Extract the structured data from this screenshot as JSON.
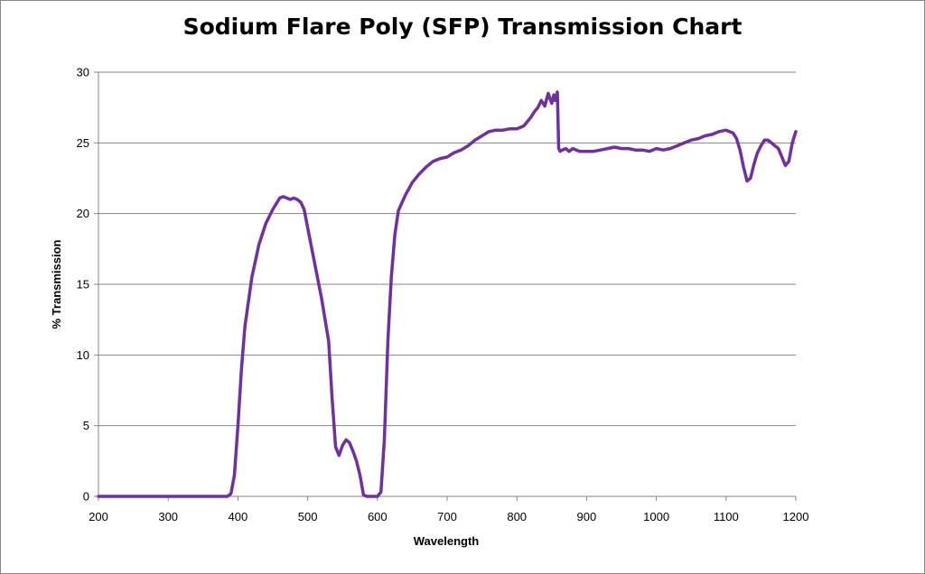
{
  "chart_data": {
    "type": "line",
    "title": "Sodium Flare Poly (SFP) Transmission Chart",
    "xlabel": "Wavelength",
    "ylabel": "% Transmission",
    "xlim": [
      200,
      1200
    ],
    "ylim": [
      0,
      30
    ],
    "x_ticks": [
      200,
      300,
      400,
      500,
      600,
      700,
      800,
      900,
      1000,
      1100,
      1200
    ],
    "y_ticks": [
      0,
      5,
      10,
      15,
      20,
      25,
      30
    ],
    "grid": "horizontal",
    "legend": "none",
    "series": [
      {
        "color": "#7030A0",
        "x": [
          200,
          300,
          385,
          390,
          395,
          400,
          405,
          410,
          420,
          430,
          440,
          450,
          460,
          465,
          470,
          475,
          480,
          485,
          490,
          495,
          500,
          510,
          520,
          530,
          535,
          540,
          545,
          550,
          555,
          560,
          565,
          570,
          575,
          580,
          585,
          590,
          595,
          600,
          605,
          610,
          615,
          620,
          625,
          630,
          640,
          650,
          660,
          670,
          680,
          690,
          700,
          710,
          720,
          730,
          740,
          750,
          760,
          770,
          780,
          790,
          800,
          810,
          815,
          820,
          825,
          830,
          835,
          840,
          845,
          850,
          853,
          855,
          858,
          860,
          862,
          865,
          870,
          875,
          880,
          890,
          900,
          910,
          920,
          930,
          940,
          950,
          960,
          970,
          980,
          990,
          1000,
          1010,
          1020,
          1030,
          1040,
          1050,
          1060,
          1070,
          1080,
          1090,
          1100,
          1110,
          1115,
          1120,
          1125,
          1130,
          1135,
          1140,
          1145,
          1150,
          1155,
          1160,
          1165,
          1170,
          1175,
          1180,
          1185,
          1190,
          1195,
          1200
        ],
        "y": [
          0,
          0,
          0,
          0.2,
          1.5,
          5,
          9,
          12,
          15.5,
          17.8,
          19.3,
          20.3,
          21.1,
          21.2,
          21.1,
          21.0,
          21.1,
          21.0,
          20.8,
          20.3,
          19,
          16.5,
          14,
          11,
          7,
          3.5,
          2.9,
          3.6,
          4.0,
          3.8,
          3.2,
          2.5,
          1.5,
          0.1,
          0,
          0,
          0,
          0,
          0.3,
          4,
          11,
          15.5,
          18.5,
          20.2,
          21.3,
          22.2,
          22.8,
          23.3,
          23.7,
          23.9,
          24.0,
          24.3,
          24.5,
          24.8,
          25.2,
          25.5,
          25.8,
          25.9,
          25.9,
          26.0,
          26.0,
          26.2,
          26.5,
          26.8,
          27.2,
          27.5,
          28.0,
          27.6,
          28.5,
          27.8,
          28.4,
          28.0,
          28.6,
          24.6,
          24.4,
          24.5,
          24.6,
          24.4,
          24.6,
          24.4,
          24.4,
          24.4,
          24.5,
          24.6,
          24.7,
          24.6,
          24.6,
          24.5,
          24.5,
          24.4,
          24.6,
          24.5,
          24.6,
          24.8,
          25.0,
          25.2,
          25.3,
          25.5,
          25.6,
          25.8,
          25.9,
          25.7,
          25.3,
          24.5,
          23.3,
          22.3,
          22.5,
          23.5,
          24.3,
          24.8,
          25.2,
          25.2,
          25.0,
          24.8,
          24.6,
          24.0,
          23.4,
          23.7,
          25.0,
          25.8
        ]
      }
    ]
  }
}
